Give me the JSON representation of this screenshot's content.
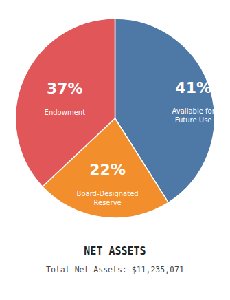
{
  "chart_data": {
    "type": "pie",
    "title": "NET ASSETS",
    "subtitle": "Total Net Assets: $11,235,071",
    "categories": [
      "Available for\nFuture Use",
      "Board-Designated\nReserve",
      "Endowment"
    ],
    "values": [
      41,
      22,
      37
    ],
    "value_labels": [
      "41%",
      "22%",
      "37%"
    ],
    "data_labels": true
  }
}
